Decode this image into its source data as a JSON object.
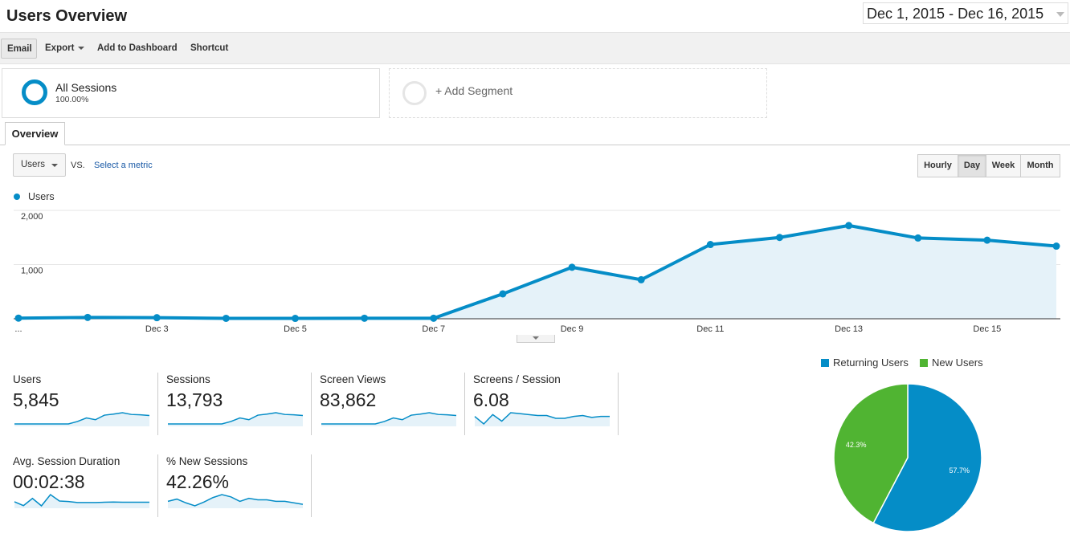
{
  "header": {
    "title": "Users Overview",
    "date_range": "Dec 1, 2015 - Dec 16, 2015"
  },
  "toolbar": {
    "email": "Email",
    "export": "Export",
    "add_to_dashboard": "Add to Dashboard",
    "shortcut": "Shortcut"
  },
  "segments": [
    {
      "name": "All Sessions",
      "percent": "100.00%"
    },
    {
      "name": "+ Add Segment"
    }
  ],
  "tabs": [
    "Overview"
  ],
  "controls": {
    "metric": "Users",
    "vs": "VS.",
    "select_metric": "Select a metric",
    "granularity": [
      "Hourly",
      "Day",
      "Week",
      "Month"
    ],
    "selected_granularity": "Day"
  },
  "colors": {
    "accent": "#058dc7",
    "returning": "#058dc7",
    "new": "#50b432",
    "area_fill": "#e5f2f9"
  },
  "chart_data": [
    {
      "type": "area",
      "series": [
        {
          "name": "Users",
          "values": [
            12,
            25,
            20,
            8,
            7,
            10,
            10,
            460,
            950,
            720,
            1370,
            1500,
            1720,
            1490,
            1450,
            1340
          ]
        }
      ],
      "x": [
        "Dec 1",
        "Dec 2",
        "Dec 3",
        "Dec 4",
        "Dec 5",
        "Dec 6",
        "Dec 7",
        "Dec 8",
        "Dec 9",
        "Dec 10",
        "Dec 11",
        "Dec 12",
        "Dec 13",
        "Dec 14",
        "Dec 15",
        "Dec 16"
      ],
      "x_tick_labels": [
        "...",
        "Dec 3",
        "Dec 5",
        "Dec 7",
        "Dec 9",
        "Dec 11",
        "Dec 13",
        "Dec 15"
      ],
      "y_tick_labels": [
        "2,000",
        "1,000"
      ],
      "y_ticks": [
        2000,
        1000
      ],
      "ylim": [
        0,
        2000
      ],
      "grid": true,
      "legend": "top-left"
    },
    {
      "type": "pie",
      "categories": [
        "Returning Users",
        "New Users"
      ],
      "values": [
        57.7,
        42.3
      ],
      "labels": [
        "57.7%",
        "42.3%"
      ],
      "legend": "top"
    }
  ],
  "metrics": [
    {
      "label": "Users",
      "value": "5,845",
      "spark": [
        10,
        10,
        10,
        10,
        10,
        10,
        10,
        45,
        95,
        70,
        135,
        150,
        170,
        145,
        140,
        130
      ]
    },
    {
      "label": "Sessions",
      "value": "13,793",
      "spark": [
        10,
        10,
        10,
        10,
        10,
        10,
        10,
        45,
        95,
        70,
        135,
        150,
        170,
        145,
        140,
        130
      ]
    },
    {
      "label": "Screen Views",
      "value": "83,862",
      "spark": [
        10,
        10,
        10,
        10,
        10,
        10,
        10,
        45,
        95,
        70,
        135,
        150,
        170,
        145,
        140,
        130
      ]
    },
    {
      "label": "Screens / Session",
      "value": "6.08",
      "spark": [
        6.1,
        5.3,
        6.3,
        5.6,
        6.5,
        6.4,
        6.3,
        6.2,
        6.2,
        5.9,
        5.9,
        6.1,
        6.2,
        6.0,
        6.1,
        6.1
      ]
    },
    {
      "label": "Avg. Session Duration",
      "value": "00:02:38",
      "spark": [
        3.2,
        1.6,
        4.6,
        1.5,
        6.2,
        3.5,
        3.3,
        2.9,
        2.9,
        2.9,
        3.0,
        3.1,
        3.0,
        3.0,
        3.0,
        3.0
      ]
    },
    {
      "label": "% New Sessions",
      "value": "42.26%",
      "spark": [
        42,
        45,
        40,
        36,
        41,
        47,
        51,
        48,
        42,
        46,
        44,
        44,
        42,
        42,
        40,
        38
      ]
    }
  ]
}
